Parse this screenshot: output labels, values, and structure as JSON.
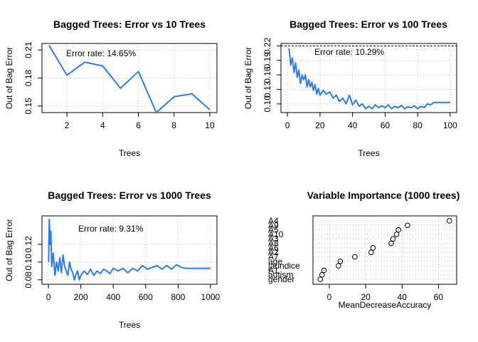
{
  "chart_data": [
    {
      "type": "line",
      "title": "Bagged Trees: Error vs 10 Trees",
      "xlabel": "Trees",
      "ylabel": "Out of Bag Error",
      "annotation": "Error rate: 14.65%",
      "xlim": [
        0.6,
        10.4
      ],
      "ylim": [
        0.143,
        0.217
      ],
      "xticks": [
        2,
        4,
        6,
        8,
        10
      ],
      "yticks": [
        0.15,
        0.18,
        0.21
      ],
      "ytick_labels": [
        "0.15",
        "0.18",
        "0.21"
      ],
      "color": "#2b7bf0",
      "grid": true,
      "x": [
        1,
        2,
        3,
        4,
        5,
        6,
        7,
        8,
        9,
        10
      ],
      "y": [
        0.215,
        0.183,
        0.197,
        0.193,
        0.169,
        0.187,
        0.143,
        0.16,
        0.163,
        0.146
      ]
    },
    {
      "type": "line",
      "title": "Bagged Trees: Error vs 100 Trees",
      "xlabel": "Trees",
      "ylabel": "Out of Bag Error",
      "annotation": "Error rate: 10.29%",
      "xlim": [
        -4,
        104
      ],
      "ylim": [
        0.082,
        0.225
      ],
      "xticks": [
        0,
        20,
        40,
        60,
        80,
        100
      ],
      "yticks": [
        0.1,
        0.13,
        0.16,
        0.19,
        0.22
      ],
      "ytick_labels": [
        "0.10",
        "0.13",
        "0.16",
        "0.19",
        "0.22"
      ],
      "hline": 0.22,
      "color": "#2b7bf0",
      "grid": true,
      "x": [
        1,
        2,
        3,
        4,
        5,
        6,
        7,
        8,
        9,
        10,
        11,
        12,
        13,
        14,
        15,
        16,
        17,
        18,
        19,
        20,
        22,
        24,
        26,
        28,
        30,
        32,
        34,
        36,
        38,
        40,
        42,
        44,
        46,
        48,
        50,
        52,
        54,
        56,
        58,
        60,
        62,
        64,
        66,
        68,
        70,
        72,
        74,
        76,
        78,
        80,
        82,
        84,
        86,
        88,
        90,
        92,
        94,
        96,
        98,
        100
      ],
      "y": [
        0.215,
        0.18,
        0.195,
        0.165,
        0.185,
        0.155,
        0.17,
        0.142,
        0.16,
        0.15,
        0.16,
        0.135,
        0.15,
        0.135,
        0.145,
        0.128,
        0.14,
        0.12,
        0.132,
        0.118,
        0.128,
        0.12,
        0.125,
        0.112,
        0.118,
        0.105,
        0.112,
        0.1,
        0.118,
        0.098,
        0.108,
        0.095,
        0.1,
        0.09,
        0.095,
        0.09,
        0.098,
        0.092,
        0.096,
        0.092,
        0.098,
        0.09,
        0.095,
        0.092,
        0.097,
        0.09,
        0.094,
        0.092,
        0.096,
        0.09,
        0.095,
        0.092,
        0.1,
        0.098,
        0.103,
        0.103,
        0.103,
        0.103,
        0.103,
        0.103
      ]
    },
    {
      "type": "line",
      "title": "Bagged Trees: Error vs 1000 Trees",
      "xlabel": "Trees",
      "ylabel": "Out of Bag Error",
      "annotation": "Error rate: 9.31%",
      "xlim": [
        -40,
        1040
      ],
      "ylim": [
        0.075,
        0.152
      ],
      "xticks": [
        0,
        200,
        400,
        600,
        800,
        1000
      ],
      "yticks": [
        0.08,
        0.1,
        0.12
      ],
      "ytick_labels": [
        "0.08",
        "0.10",
        "0.12"
      ],
      "color": "#2b7bf0",
      "grid": true,
      "x": [
        1,
        5,
        10,
        15,
        20,
        30,
        40,
        50,
        60,
        70,
        80,
        90,
        100,
        110,
        120,
        130,
        140,
        150,
        160,
        170,
        180,
        190,
        200,
        220,
        240,
        260,
        280,
        300,
        320,
        340,
        360,
        380,
        400,
        430,
        460,
        490,
        520,
        550,
        580,
        610,
        640,
        670,
        700,
        730,
        760,
        790,
        820,
        850,
        880,
        910,
        940,
        970,
        1000
      ],
      "y": [
        0.1,
        0.148,
        0.12,
        0.135,
        0.095,
        0.11,
        0.085,
        0.1,
        0.09,
        0.105,
        0.088,
        0.108,
        0.095,
        0.09,
        0.085,
        0.1,
        0.092,
        0.088,
        0.08,
        0.086,
        0.09,
        0.08,
        0.085,
        0.09,
        0.086,
        0.092,
        0.085,
        0.09,
        0.087,
        0.092,
        0.09,
        0.087,
        0.093,
        0.09,
        0.093,
        0.088,
        0.093,
        0.09,
        0.096,
        0.092,
        0.094,
        0.096,
        0.092,
        0.096,
        0.092,
        0.097,
        0.094,
        0.093,
        0.093,
        0.093,
        0.093,
        0.093,
        0.093
      ]
    },
    {
      "type": "scatter",
      "title": "Variable Importance (1000 trees)",
      "xlabel": "MeanDecreaseAccuracy",
      "xlim": [
        -9,
        70
      ],
      "xticks": [
        0,
        20,
        40,
        60
      ],
      "grid": true,
      "categories": [
        "A4",
        "A9",
        "A5",
        "A10",
        "A3",
        "A8",
        "A6",
        "A2",
        "A7",
        "age",
        "jaundice",
        "A1",
        "autism",
        "gender"
      ],
      "values": [
        66,
        43,
        38,
        37,
        35,
        34,
        24,
        23,
        14,
        6,
        5,
        -3,
        -4,
        -5
      ]
    }
  ]
}
